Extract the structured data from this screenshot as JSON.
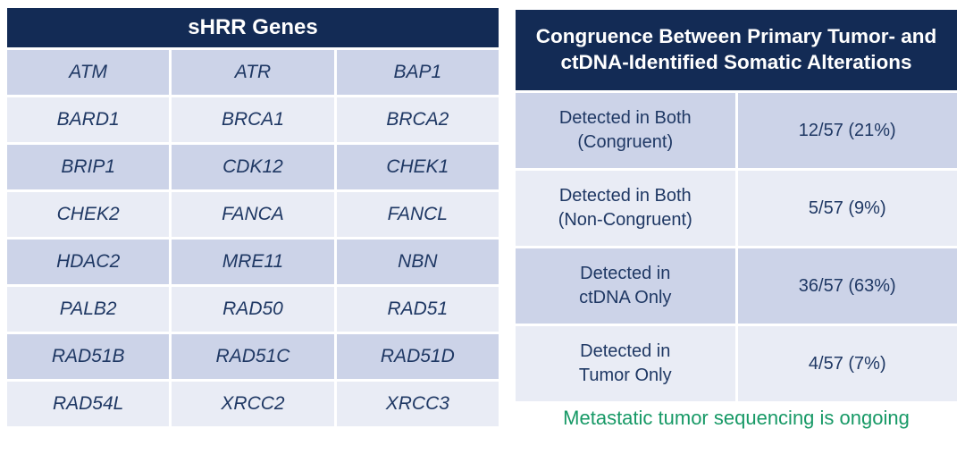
{
  "colors": {
    "header_navy": "#132b55",
    "row_dark": "#ccd3e8",
    "row_light": "#e9ecf5",
    "text_navy": "#1f3864",
    "footnote_green": "#179966"
  },
  "genes_table": {
    "title": "sHRR Genes",
    "rows": [
      [
        "ATM",
        "ATR",
        "BAP1"
      ],
      [
        "BARD1",
        "BRCA1",
        "BRCA2"
      ],
      [
        "BRIP1",
        "CDK12",
        "CHEK1"
      ],
      [
        "CHEK2",
        "FANCA",
        "FANCL"
      ],
      [
        "HDAC2",
        "MRE11",
        "NBN"
      ],
      [
        "PALB2",
        "RAD50",
        "RAD51"
      ],
      [
        "RAD51B",
        "RAD51C",
        "RAD51D"
      ],
      [
        "RAD54L",
        "XRCC2",
        "XRCC3"
      ]
    ]
  },
  "congruence_table": {
    "title_line1": "Congruence Between Primary Tumor- and",
    "title_line2": "ctDNA-Identified Somatic Alterations",
    "rows": [
      {
        "label_line1": "Detected in Both",
        "label_line2": "(Congruent)",
        "value": "12/57 (21%)"
      },
      {
        "label_line1": "Detected in Both",
        "label_line2": "(Non-Congruent)",
        "value": "5/57 (9%)"
      },
      {
        "label_line1": "Detected in",
        "label_line2": "ctDNA Only",
        "value": "36/57 (63%)"
      },
      {
        "label_line1": "Detected in",
        "label_line2": "Tumor Only",
        "value": "4/57 (7%)"
      }
    ],
    "footnote": "Metastatic tumor sequencing is ongoing"
  }
}
